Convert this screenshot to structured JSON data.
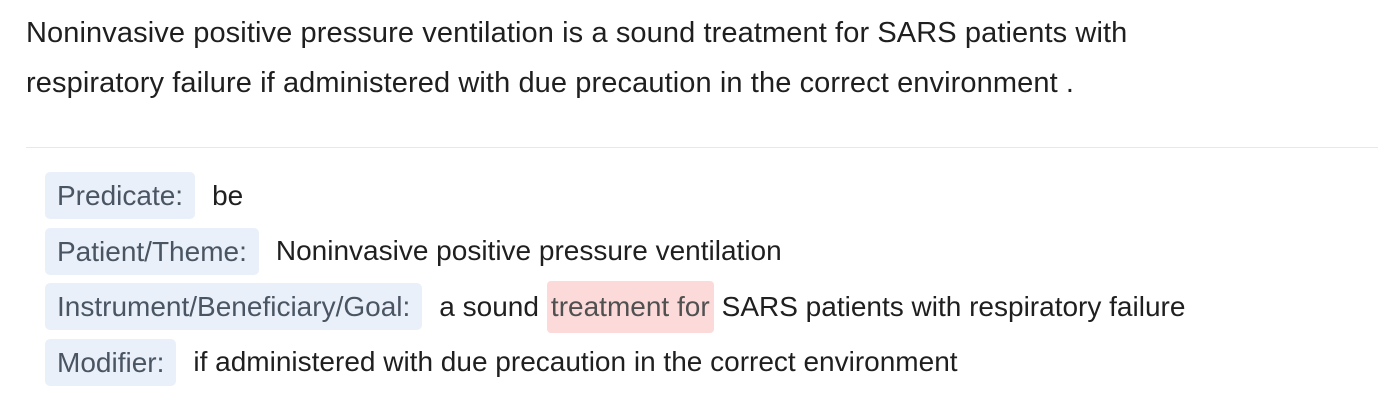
{
  "sentence": {
    "line1": "Noninvasive positive pressure ventilation is a sound treatment for SARS patients with",
    "line2": "respiratory failure if administered with due precaution in the correct environment ."
  },
  "roles": {
    "predicate": {
      "label": "Predicate:",
      "value": "be"
    },
    "patient_theme": {
      "label": "Patient/Theme:",
      "value": "Noninvasive positive pressure ventilation"
    },
    "instrument_beneficiary_goal": {
      "label": "Instrument/Beneficiary/Goal:",
      "before": "a sound",
      "highlight": "treatment for",
      "after": "SARS patients with respiratory failure"
    },
    "modifier": {
      "label": "Modifier:",
      "value": "if administered with due precaution in the correct environment"
    }
  },
  "colors": {
    "tag_background": "#eaf0f9",
    "highlight_background": "#fcdada",
    "divider": "#e6e8eb"
  }
}
